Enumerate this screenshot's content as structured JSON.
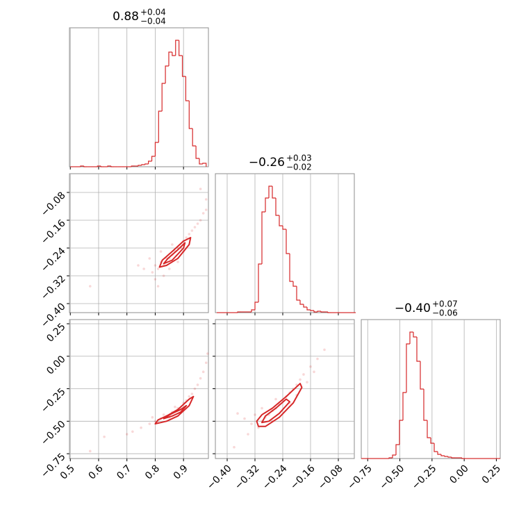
{
  "chart_data": [
    {
      "type": "histogram",
      "title": "0.88",
      "title_upper": "+0.04",
      "title_lower": "−0.04",
      "color": "#d62728",
      "bins": [
        0.5,
        0.512,
        0.524,
        0.536,
        0.548,
        0.56,
        0.572,
        0.584,
        0.596,
        0.608,
        0.62,
        0.632,
        0.644,
        0.656,
        0.668,
        0.68,
        0.692,
        0.704,
        0.716,
        0.728,
        0.74,
        0.752,
        0.764,
        0.776,
        0.788,
        0.8,
        0.812,
        0.824,
        0.836,
        0.848,
        0.86,
        0.872,
        0.884,
        0.896,
        0.908,
        0.92,
        0.932,
        0.944,
        0.956,
        0.968,
        0.98
      ],
      "counts": [
        0,
        0,
        0,
        1,
        0,
        0,
        0,
        0,
        1,
        0,
        0,
        1,
        0,
        0,
        0,
        0,
        0,
        0,
        1,
        1,
        2,
        3,
        4,
        8,
        15,
        35,
        80,
        120,
        145,
        165,
        160,
        182,
        160,
        130,
        95,
        55,
        30,
        12,
        4,
        5
      ],
      "xlim": [
        0.497,
        0.988
      ],
      "ylim": [
        0,
        200
      ],
      "xticks": [
        0.5,
        0.6,
        0.7,
        0.8,
        0.9
      ],
      "xtick_labels": false,
      "grid": true
    },
    {
      "type": "scatter",
      "color": "#d62728",
      "x": [
        0.8,
        0.81,
        0.82,
        0.83,
        0.84,
        0.85,
        0.86,
        0.87,
        0.88,
        0.89,
        0.9,
        0.91,
        0.92,
        0.93,
        0.94,
        0.95,
        0.96,
        0.97,
        0.98,
        0.79,
        0.78,
        0.8,
        0.83,
        0.76,
        0.85,
        0.88,
        0.9,
        0.74,
        0.57,
        0.81,
        0.86,
        0.82,
        0.98,
        0.96
      ],
      "y": [
        -0.29,
        -0.3,
        -0.28,
        -0.29,
        -0.27,
        -0.27,
        -0.26,
        -0.25,
        -0.24,
        -0.24,
        -0.22,
        -0.21,
        -0.2,
        -0.19,
        -0.18,
        -0.17,
        -0.16,
        -0.14,
        -0.13,
        -0.31,
        -0.27,
        -0.33,
        -0.32,
        -0.3,
        -0.3,
        -0.28,
        -0.25,
        -0.29,
        -0.35,
        -0.35,
        -0.23,
        -0.25,
        -0.1,
        -0.07
      ],
      "contours": [
        {
          "x": [
            0.815,
            0.84,
            0.88,
            0.92,
            0.925,
            0.9,
            0.86,
            0.825
          ],
          "y": [
            -0.295,
            -0.29,
            -0.27,
            -0.23,
            -0.21,
            -0.22,
            -0.25,
            -0.275
          ]
        },
        {
          "x": [
            0.83,
            0.86,
            0.9,
            0.905,
            0.88,
            0.845
          ],
          "y": [
            -0.285,
            -0.275,
            -0.24,
            -0.225,
            -0.245,
            -0.27
          ]
        }
      ],
      "xlim": [
        0.497,
        0.988
      ],
      "ylim": [
        -0.426,
        -0.026
      ],
      "xticks": [
        0.5,
        0.6,
        0.7,
        0.8,
        0.9
      ],
      "yticks": [
        {
          "value": -0.08,
          "label": "−0.08"
        },
        {
          "value": -0.16,
          "label": "−0.16"
        },
        {
          "value": -0.24,
          "label": "−0.24"
        },
        {
          "value": -0.32,
          "label": "−0.32"
        },
        {
          "value": -0.4,
          "label": "−0.40"
        }
      ],
      "xtick_labels": false,
      "ytick_labels": true,
      "grid": true
    },
    {
      "type": "histogram",
      "title": "−0.26",
      "title_upper": "+0.03",
      "title_lower": "−0.02",
      "color": "#d62728",
      "bins": [
        -0.43,
        -0.42,
        -0.41,
        -0.4,
        -0.39,
        -0.38,
        -0.37,
        -0.36,
        -0.35,
        -0.34,
        -0.33,
        -0.32,
        -0.31,
        -0.3,
        -0.29,
        -0.28,
        -0.27,
        -0.26,
        -0.25,
        -0.24,
        -0.23,
        -0.22,
        -0.21,
        -0.2,
        -0.19,
        -0.18,
        -0.17,
        -0.16,
        -0.15,
        -0.14,
        -0.13,
        -0.12,
        -0.11,
        -0.1,
        -0.09,
        -0.08,
        -0.07,
        -0.06,
        -0.05,
        -0.04,
        -0.03
      ],
      "counts": [
        0,
        0,
        0,
        0,
        0,
        0,
        1,
        1,
        1,
        1,
        4,
        15,
        70,
        145,
        165,
        182,
        165,
        140,
        125,
        120,
        85,
        45,
        38,
        18,
        12,
        8,
        4,
        3,
        1,
        2,
        1,
        1,
        0,
        0,
        0,
        0,
        0,
        0,
        0,
        0
      ],
      "xlim": [
        -0.434,
        -0.034
      ],
      "ylim": [
        0,
        200
      ],
      "xticks": [
        -0.4,
        -0.32,
        -0.24,
        -0.16,
        -0.08
      ],
      "xtick_labels": false,
      "grid": true
    },
    {
      "type": "scatter",
      "color": "#d62728",
      "x": [
        0.78,
        0.8,
        0.82,
        0.84,
        0.86,
        0.88,
        0.9,
        0.92,
        0.94,
        0.96,
        0.98,
        0.75,
        0.72,
        0.7,
        0.83,
        0.85,
        0.87,
        0.89,
        0.91,
        0.93,
        0.95,
        0.97,
        0.985,
        0.62,
        0.57,
        0.81,
        0.79
      ],
      "y": [
        -0.52,
        -0.5,
        -0.48,
        -0.46,
        -0.43,
        -0.4,
        -0.36,
        -0.31,
        -0.25,
        -0.17,
        -0.05,
        -0.55,
        -0.58,
        -0.6,
        -0.45,
        -0.47,
        -0.39,
        -0.41,
        -0.34,
        -0.29,
        -0.22,
        -0.12,
        0.02,
        -0.62,
        -0.73,
        -0.51,
        -0.47
      ],
      "contours": [
        {
          "x": [
            0.8,
            0.84,
            0.88,
            0.92,
            0.935,
            0.92,
            0.88,
            0.84,
            0.81
          ],
          "y": [
            -0.52,
            -0.5,
            -0.46,
            -0.38,
            -0.31,
            -0.33,
            -0.41,
            -0.46,
            -0.49
          ]
        },
        {
          "x": [
            0.83,
            0.86,
            0.89,
            0.91,
            0.89,
            0.86,
            0.835
          ],
          "y": [
            -0.48,
            -0.46,
            -0.43,
            -0.38,
            -0.41,
            -0.44,
            -0.47
          ]
        }
      ],
      "xlim": [
        0.497,
        0.988
      ],
      "ylim": [
        -0.787,
        0.282
      ],
      "xticks": [
        0.5,
        0.6,
        0.7,
        0.8,
        0.9
      ],
      "yticks": [
        {
          "value": 0.25,
          "label": "0.25"
        },
        {
          "value": 0,
          "label": "0.00"
        },
        {
          "value": -0.25,
          "label": "−0.25"
        },
        {
          "value": -0.5,
          "label": "−0.50"
        },
        {
          "value": -0.75,
          "label": "−0.75"
        }
      ],
      "xtick_labels": true,
      "ytick_labels": true,
      "grid": true
    },
    {
      "type": "scatter",
      "color": "#d62728",
      "x": [
        -0.3,
        -0.29,
        -0.28,
        -0.27,
        -0.26,
        -0.25,
        -0.24,
        -0.23,
        -0.22,
        -0.21,
        -0.2,
        -0.19,
        -0.18,
        -0.16,
        -0.14,
        -0.12,
        -0.31,
        -0.32,
        -0.33,
        -0.3,
        -0.27,
        -0.35,
        -0.37,
        -0.34,
        -0.26,
        -0.22,
        -0.38,
        -0.2,
        -0.17,
        -0.15
      ],
      "y": [
        -0.5,
        -0.47,
        -0.45,
        -0.42,
        -0.4,
        -0.37,
        -0.34,
        -0.31,
        -0.28,
        -0.25,
        -0.22,
        -0.18,
        -0.14,
        -0.08,
        -0.02,
        0.05,
        -0.55,
        -0.45,
        -0.52,
        -0.4,
        -0.5,
        -0.48,
        -0.44,
        -0.6,
        -0.33,
        -0.36,
        -0.7,
        -0.3,
        -0.2,
        -0.12
      ],
      "contours": [
        {
          "x": [
            -0.31,
            -0.29,
            -0.25,
            -0.21,
            -0.185,
            -0.19,
            -0.23,
            -0.27,
            -0.3,
            -0.315
          ],
          "y": [
            -0.54,
            -0.54,
            -0.47,
            -0.36,
            -0.24,
            -0.21,
            -0.31,
            -0.4,
            -0.45,
            -0.5
          ]
        },
        {
          "x": [
            -0.3,
            -0.28,
            -0.25,
            -0.22,
            -0.23,
            -0.26,
            -0.29
          ],
          "y": [
            -0.51,
            -0.5,
            -0.44,
            -0.35,
            -0.33,
            -0.4,
            -0.46
          ]
        }
      ],
      "xlim": [
        -0.434,
        -0.034
      ],
      "ylim": [
        -0.787,
        0.282
      ],
      "xticks": [
        {
          "value": -0.4,
          "label": "−0.40"
        },
        {
          "value": -0.32,
          "label": "−0.32"
        },
        {
          "value": -0.24,
          "label": "−0.24"
        },
        {
          "value": -0.16,
          "label": "−0.16"
        },
        {
          "value": -0.08,
          "label": "−0.08"
        }
      ],
      "yticks": [
        0.25,
        0,
        -0.25,
        -0.5,
        -0.75
      ],
      "xtick_labels": true,
      "ytick_labels": false,
      "grid": true
    },
    {
      "type": "histogram",
      "title": "−0.40",
      "title_upper": "+0.07",
      "title_lower": "−0.06",
      "color": "#d62728",
      "bins": [
        -0.8,
        -0.773,
        -0.746,
        -0.719,
        -0.692,
        -0.665,
        -0.638,
        -0.611,
        -0.584,
        -0.557,
        -0.53,
        -0.503,
        -0.476,
        -0.449,
        -0.422,
        -0.395,
        -0.368,
        -0.341,
        -0.314,
        -0.287,
        -0.26,
        -0.233,
        -0.206,
        -0.179,
        -0.152,
        -0.125,
        -0.098,
        -0.071,
        -0.044,
        -0.017,
        0.01,
        0.037,
        0.064,
        0.091,
        0.118,
        0.145,
        0.172,
        0.199,
        0.226,
        0.253,
        0.28
      ],
      "counts": [
        0,
        0,
        0,
        0,
        0,
        0,
        0,
        0,
        1,
        5,
        20,
        55,
        95,
        165,
        182,
        175,
        140,
        100,
        55,
        30,
        22,
        10,
        6,
        4,
        3,
        2,
        1,
        1,
        1,
        0,
        0,
        0,
        0,
        0,
        0,
        0,
        0,
        0,
        0,
        0
      ],
      "xlim": [
        -0.8,
        0.28
      ],
      "ylim": [
        0,
        200
      ],
      "xticks": [
        {
          "value": -0.75,
          "label": "−0.75"
        },
        {
          "value": -0.5,
          "label": "−0.50"
        },
        {
          "value": -0.25,
          "label": "−0.25"
        },
        {
          "value": 0,
          "label": "0.00"
        },
        {
          "value": 0.25,
          "label": "0.25"
        }
      ],
      "xtick_labels": true,
      "grid": true
    }
  ]
}
